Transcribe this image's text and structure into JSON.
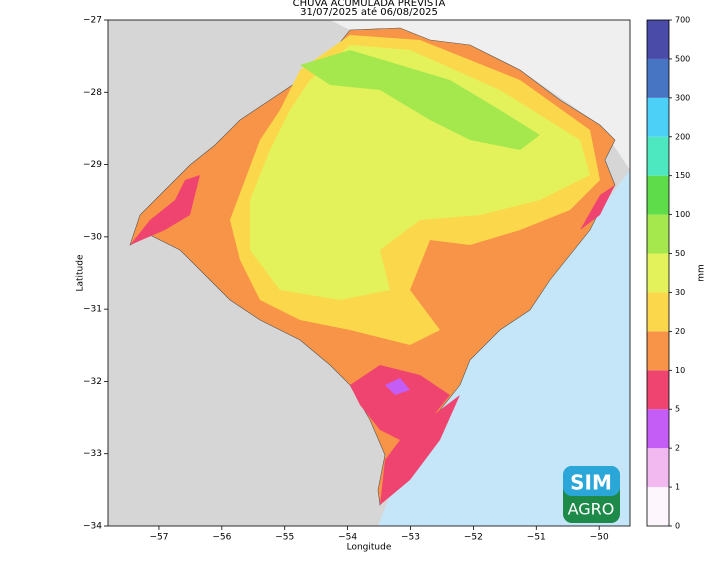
{
  "chart_data": {
    "type": "map",
    "title": "CHUVA ACUMULADA PREVISTA",
    "subtitle": "31/07/2025 até 06/08/2025",
    "xlabel": "Longitude",
    "ylabel": "Latitude",
    "xlim": [
      -57.81,
      -49.51
    ],
    "ylim": [
      -34,
      -27
    ],
    "xticks": [
      {
        "value": -57,
        "label": "−57"
      },
      {
        "value": -56,
        "label": "−56"
      },
      {
        "value": -55,
        "label": "−55"
      },
      {
        "value": -54,
        "label": "−54"
      },
      {
        "value": -53,
        "label": "−53"
      },
      {
        "value": -52,
        "label": "−52"
      },
      {
        "value": -51,
        "label": "−51"
      },
      {
        "value": -50,
        "label": "−50"
      }
    ],
    "yticks": [
      {
        "value": -27,
        "label": "−27"
      },
      {
        "value": -28,
        "label": "−28"
      },
      {
        "value": -29,
        "label": "−29"
      },
      {
        "value": -30,
        "label": "−30"
      },
      {
        "value": -31,
        "label": "−31"
      },
      {
        "value": -32,
        "label": "−32"
      },
      {
        "value": -33,
        "label": "−33"
      },
      {
        "value": -34,
        "label": "−34"
      }
    ],
    "colorbar": {
      "label": "mm",
      "ticks": [
        0,
        1,
        2,
        5,
        10,
        20,
        30,
        50,
        100,
        150,
        200,
        300,
        500,
        700
      ],
      "colors": [
        "#fdf6fc",
        "#f2b8f0",
        "#c45df5",
        "#f04470",
        "#f79447",
        "#fbd84b",
        "#e3f25b",
        "#a5e84d",
        "#5fdc4a",
        "#4de8bf",
        "#4dd0f7",
        "#4874c4",
        "#4a4aa8"
      ]
    },
    "logo": {
      "top": "SIM",
      "bottom": "AGRO"
    }
  }
}
